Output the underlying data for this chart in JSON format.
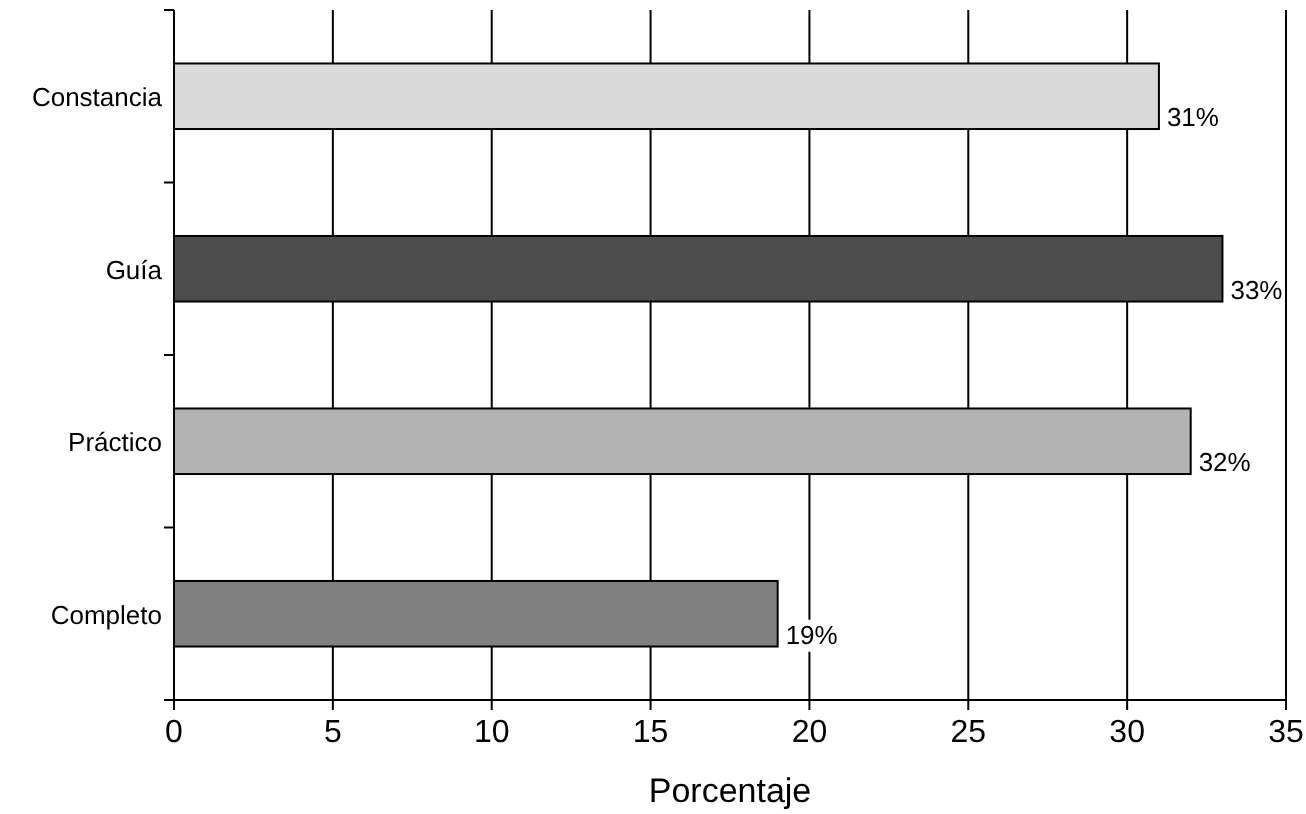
{
  "chart_data": {
    "type": "bar",
    "orientation": "horizontal",
    "xlabel": "Porcentaje",
    "categories": [
      "Constancia",
      "Guía",
      "Práctico",
      "Completo"
    ],
    "values": [
      31,
      33,
      32,
      19
    ],
    "colors": [
      "#d9d9d9",
      "#4d4d4d",
      "#b3b3b3",
      "#808080"
    ],
    "value_labels": [
      "31%",
      "33%",
      "32%",
      "19%"
    ],
    "xlim": [
      0,
      35
    ],
    "xticks": [
      0,
      5,
      10,
      15,
      20,
      25,
      30,
      35
    ],
    "grid": "x"
  }
}
